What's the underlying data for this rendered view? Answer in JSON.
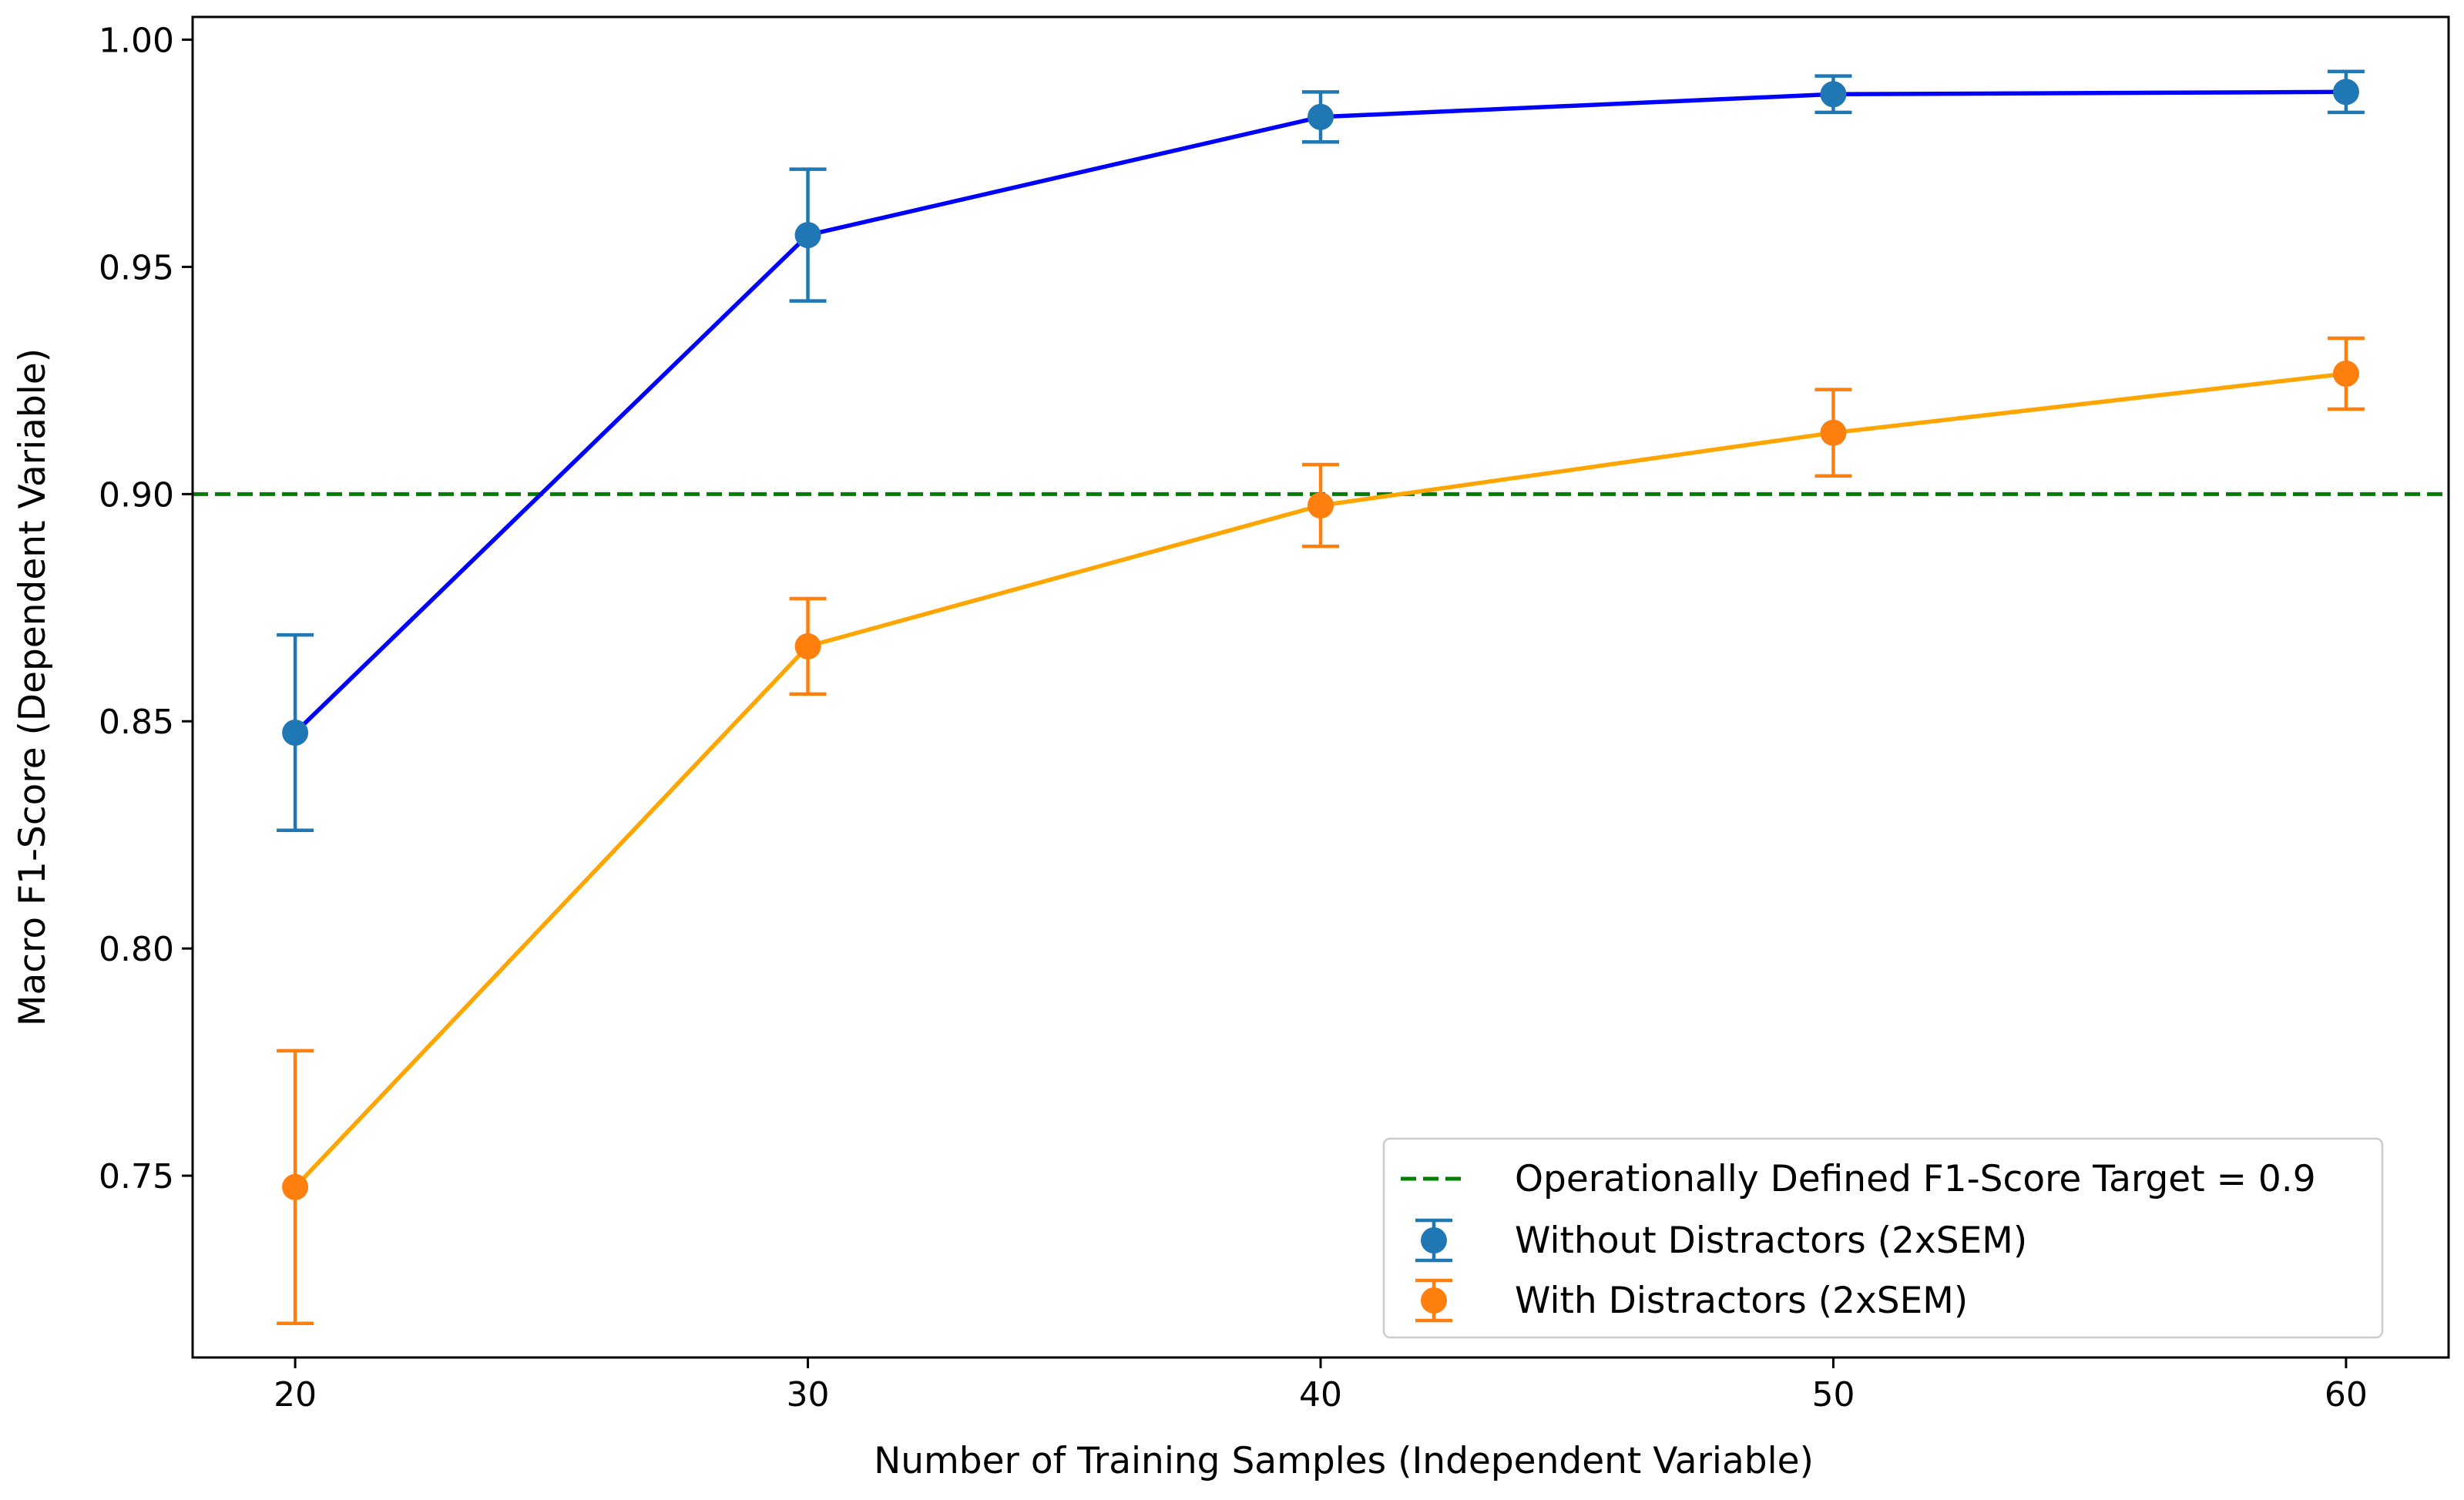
{
  "chart_data": {
    "type": "line",
    "title": "",
    "xlabel": "Number of Training Samples (Independent Variable)",
    "ylabel": "Macro F1-Score (Dependent Variable)",
    "x": [
      20,
      30,
      40,
      50,
      60
    ],
    "xlim": [
      18,
      62
    ],
    "ylim": [
      0.71,
      1.005
    ],
    "xticks": [
      20,
      30,
      40,
      50,
      60
    ],
    "xtick_labels": [
      "20",
      "30",
      "40",
      "50",
      "60"
    ],
    "yticks": [
      0.75,
      0.8,
      0.85,
      0.9,
      0.95,
      1.0
    ],
    "ytick_labels": [
      "0.75",
      "0.80",
      "0.85",
      "0.90",
      "0.95",
      "1.00"
    ],
    "grid": false,
    "legend_position": "lower-right",
    "target_line": {
      "label": "Operationally Defined F1-Score Target = 0.9",
      "y": 0.9,
      "color": "#008000",
      "style": "dashed"
    },
    "series": [
      {
        "name": "Without Distractors (2xSEM)",
        "values": [
          0.8475,
          0.957,
          0.983,
          0.988,
          0.9885
        ],
        "errors": [
          0.0215,
          0.0145,
          0.0055,
          0.004,
          0.0045
        ],
        "line_color": "#0000ff",
        "marker_color": "#1f77b4"
      },
      {
        "name": "With Distractors (2xSEM)",
        "values": [
          0.7475,
          0.8665,
          0.8975,
          0.9135,
          0.9265
        ],
        "errors": [
          0.03,
          0.0105,
          0.009,
          0.0095,
          0.0078
        ],
        "line_color": "#ffa500",
        "marker_color": "#ff7f0e"
      }
    ]
  }
}
